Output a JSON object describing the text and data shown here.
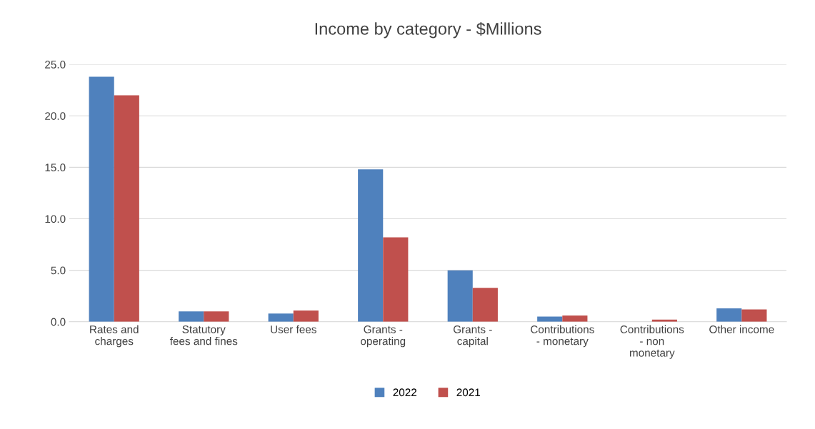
{
  "chart_data": {
    "type": "bar",
    "title": "Income by category - $Millions",
    "categories": [
      "Rates and\ncharges",
      "Statutory\nfees and fines",
      "User fees",
      "Grants -\noperating",
      "Grants -\ncapital",
      "Contributions\n- monetary",
      "Contributions\n- non\nmonetary",
      "Other income"
    ],
    "series": [
      {
        "name": "2022",
        "color": "#4f81bd",
        "values": [
          23.8,
          1.0,
          0.8,
          14.8,
          5.0,
          0.5,
          0.0,
          1.3
        ]
      },
      {
        "name": "2021",
        "color": "#c0504d",
        "values": [
          22.0,
          1.0,
          1.1,
          8.2,
          3.3,
          0.6,
          0.2,
          1.2
        ]
      }
    ],
    "ylim": [
      0,
      25
    ],
    "yticks": [
      {
        "value": 0,
        "label": "0.0"
      },
      {
        "value": 5,
        "label": "5.0"
      },
      {
        "value": 10,
        "label": "10.0"
      },
      {
        "value": 15,
        "label": "15.0"
      },
      {
        "value": 20,
        "label": "20.0"
      },
      {
        "value": 25,
        "label": "25.0"
      }
    ],
    "grid": "y",
    "legend": "bottom"
  }
}
